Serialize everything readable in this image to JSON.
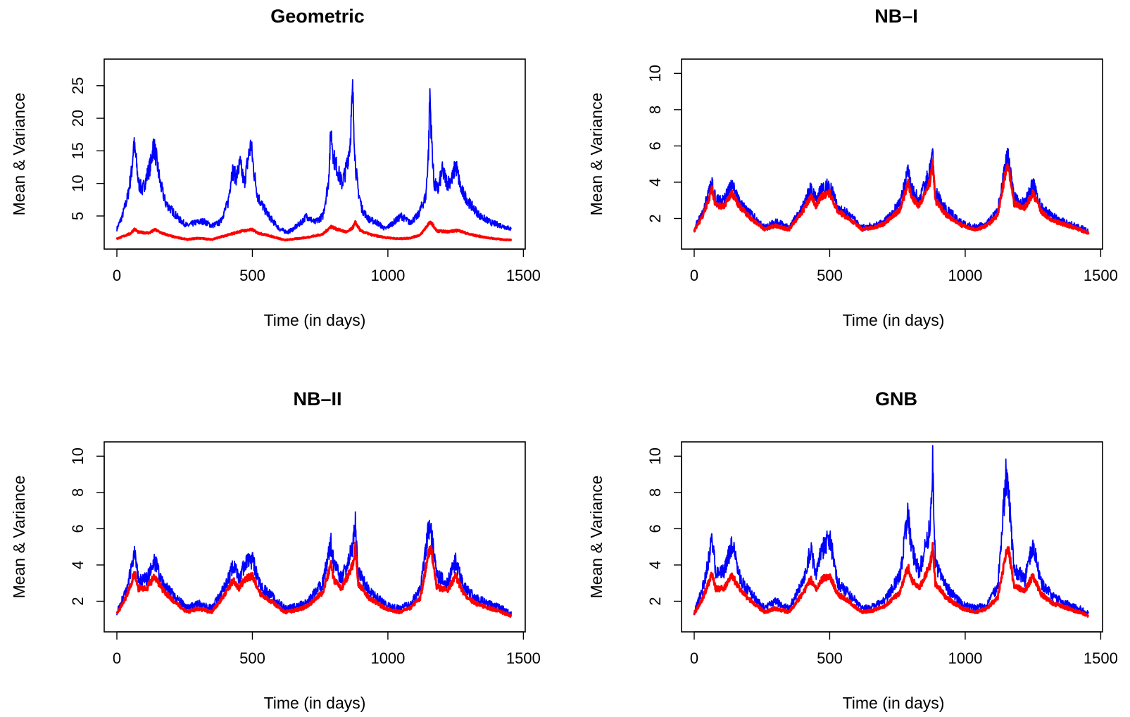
{
  "chart_data": [
    {
      "type": "line",
      "title": "Geometric",
      "xlabel": "Time (in days)",
      "ylabel": "Mean & Variance",
      "xlim": [
        0,
        1460
      ],
      "ylim": [
        1,
        28
      ],
      "xticks": [
        0,
        500,
        1000,
        1500
      ],
      "yticks": [
        5,
        10,
        15,
        20,
        25
      ],
      "grid": false,
      "colors": {
        "variance": "#0000ff",
        "mean": "#ff0000"
      },
      "series": [
        {
          "x": [
            0,
            20,
            40,
            55,
            62,
            70,
            80,
            95,
            110,
            125,
            135,
            145,
            160,
            180,
            200,
            230,
            260,
            290,
            320,
            350,
            380,
            410,
            425,
            440,
            455,
            470,
            485,
            495,
            505,
            520,
            545,
            570,
            600,
            630,
            650,
            680,
            700,
            730,
            760,
            780,
            790,
            800,
            815,
            830,
            845,
            860,
            870,
            880,
            890,
            905,
            930,
            960,
            990,
            1020,
            1050,
            1080,
            1110,
            1140,
            1150,
            1155,
            1160,
            1170,
            1185,
            1200,
            1220,
            1240,
            1250,
            1270,
            1300,
            1340,
            1380,
            1420,
            1455
          ],
          "values": [
            3,
            5,
            8,
            12,
            16,
            14,
            10,
            9,
            11,
            13,
            16,
            14,
            10,
            7,
            6,
            4.5,
            3.5,
            4,
            4.2,
            3.5,
            4,
            7,
            12,
            11,
            13,
            10,
            14,
            16,
            12,
            8,
            6,
            4.5,
            3,
            2.5,
            3,
            4,
            5,
            4,
            5,
            10,
            18,
            14,
            12,
            10,
            12,
            16,
            24,
            13,
            9,
            6,
            4.5,
            4,
            3,
            4,
            5,
            4,
            5,
            8,
            15,
            24,
            18,
            10,
            9,
            12,
            10,
            11,
            13,
            9,
            7,
            5,
            4,
            3.5,
            3
          ]
        },
        {
          "x": [
            0,
            50,
            65,
            80,
            120,
            140,
            170,
            210,
            260,
            300,
            350,
            420,
            460,
            500,
            520,
            560,
            620,
            660,
            700,
            760,
            790,
            810,
            850,
            870,
            880,
            900,
            940,
            990,
            1040,
            1080,
            1120,
            1150,
            1160,
            1180,
            1220,
            1260,
            1300,
            1360,
            1420,
            1455
          ],
          "values": [
            1.5,
            2.3,
            3,
            2.5,
            2.4,
            2.9,
            2.3,
            1.8,
            1.4,
            1.6,
            1.4,
            2.2,
            2.7,
            2.9,
            2.4,
            2,
            1.3,
            1.5,
            1.7,
            2.2,
            3.4,
            3,
            2.5,
            3.2,
            4,
            2.7,
            2.1,
            1.7,
            1.5,
            1.6,
            2.1,
            3.8,
            4,
            2.7,
            2.6,
            2.8,
            2.2,
            1.7,
            1.4,
            1.3
          ]
        }
      ]
    },
    {
      "type": "line",
      "title": "NB–I",
      "xlabel": "Time (in days)",
      "ylabel": "Mean & Variance",
      "xlim": [
        0,
        1460
      ],
      "ylim": [
        0.7,
        10.4
      ],
      "xticks": [
        0,
        500,
        1000,
        1500
      ],
      "yticks": [
        2,
        4,
        6,
        8,
        10
      ],
      "grid": false,
      "colors": {
        "variance": "#0000ff",
        "mean": "#ff0000"
      },
      "series": [
        {
          "x": [
            0,
            30,
            55,
            65,
            80,
            110,
            140,
            170,
            210,
            260,
            300,
            350,
            400,
            430,
            450,
            470,
            500,
            530,
            570,
            620,
            660,
            700,
            760,
            790,
            800,
            830,
            870,
            880,
            890,
            930,
            990,
            1040,
            1080,
            1120,
            1150,
            1160,
            1180,
            1220,
            1250,
            1280,
            1320,
            1380,
            1420,
            1455
          ],
          "values": [
            1.4,
            2.3,
            3.4,
            4.1,
            3,
            3,
            3.8,
            2.8,
            2.2,
            1.5,
            1.8,
            1.5,
            2.6,
            3.6,
            3,
            3.6,
            3.8,
            2.6,
            2.2,
            1.5,
            1.6,
            1.8,
            2.8,
            4.6,
            3.6,
            3,
            4.6,
            5.5,
            3.4,
            2.5,
            1.7,
            1.5,
            1.7,
            2.4,
            5.2,
            5.3,
            3.1,
            2.8,
            3.9,
            2.6,
            2.1,
            1.7,
            1.5,
            1.3
          ]
        },
        {
          "x": [
            0,
            30,
            55,
            65,
            80,
            110,
            140,
            170,
            210,
            260,
            300,
            350,
            400,
            430,
            450,
            470,
            500,
            530,
            570,
            620,
            660,
            700,
            760,
            790,
            800,
            830,
            870,
            880,
            890,
            930,
            990,
            1040,
            1080,
            1120,
            1150,
            1160,
            1180,
            1220,
            1250,
            1280,
            1320,
            1380,
            1420,
            1455
          ],
          "values": [
            1.3,
            2.1,
            3.1,
            3.6,
            2.7,
            2.7,
            3.4,
            2.6,
            2,
            1.4,
            1.6,
            1.4,
            2.4,
            3.2,
            2.7,
            3.2,
            3.4,
            2.4,
            2,
            1.4,
            1.5,
            1.7,
            2.5,
            4,
            3.2,
            2.7,
            4,
            5,
            3,
            2.2,
            1.6,
            1.4,
            1.6,
            2.2,
            4.6,
            4.9,
            2.8,
            2.6,
            3.4,
            2.4,
            1.9,
            1.6,
            1.4,
            1.2
          ]
        }
      ]
    },
    {
      "type": "line",
      "title": "NB–II",
      "xlabel": "Time (in days)",
      "ylabel": "Mean & Variance",
      "xlim": [
        0,
        1460
      ],
      "ylim": [
        0.7,
        10.4
      ],
      "xticks": [
        0,
        500,
        1000,
        1500
      ],
      "yticks": [
        2,
        4,
        6,
        8,
        10
      ],
      "grid": false,
      "colors": {
        "variance": "#0000ff",
        "mean": "#ff0000"
      },
      "series": [
        {
          "x": [
            0,
            30,
            55,
            65,
            80,
            110,
            140,
            170,
            210,
            260,
            300,
            350,
            400,
            430,
            450,
            470,
            500,
            530,
            570,
            620,
            660,
            700,
            760,
            790,
            800,
            830,
            870,
            880,
            890,
            930,
            990,
            1040,
            1080,
            1120,
            1150,
            1160,
            1180,
            1220,
            1250,
            1280,
            1320,
            1380,
            1420,
            1455
          ],
          "values": [
            1.4,
            2.4,
            3.8,
            4.6,
            3.2,
            3.2,
            4.2,
            3,
            2.3,
            1.6,
            1.9,
            1.6,
            2.8,
            4,
            3.2,
            4,
            4.3,
            2.8,
            2.3,
            1.6,
            1.7,
            1.9,
            3,
            5.2,
            4,
            3.2,
            5,
            6.4,
            3.6,
            2.6,
            1.8,
            1.6,
            1.8,
            2.6,
            6,
            5.8,
            3.4,
            3,
            4.2,
            2.8,
            2.2,
            1.8,
            1.6,
            1.3
          ]
        },
        {
          "x": [
            0,
            30,
            55,
            65,
            80,
            110,
            140,
            170,
            210,
            260,
            300,
            350,
            400,
            430,
            450,
            470,
            500,
            530,
            570,
            620,
            660,
            700,
            760,
            790,
            800,
            830,
            870,
            880,
            890,
            930,
            990,
            1040,
            1080,
            1120,
            1150,
            1160,
            1180,
            1220,
            1250,
            1280,
            1320,
            1380,
            1420,
            1455
          ],
          "values": [
            1.3,
            2.1,
            3.1,
            3.6,
            2.7,
            2.7,
            3.4,
            2.6,
            2,
            1.4,
            1.6,
            1.4,
            2.4,
            3.2,
            2.7,
            3.2,
            3.4,
            2.4,
            2,
            1.4,
            1.5,
            1.7,
            2.5,
            4,
            3.2,
            2.7,
            4,
            5,
            3,
            2.2,
            1.6,
            1.4,
            1.6,
            2.2,
            4.6,
            4.9,
            2.8,
            2.6,
            3.4,
            2.4,
            1.9,
            1.6,
            1.4,
            1.2
          ]
        }
      ]
    },
    {
      "type": "line",
      "title": "GNB",
      "xlabel": "Time (in days)",
      "ylabel": "Mean & Variance",
      "xlim": [
        0,
        1460
      ],
      "ylim": [
        0.7,
        10.4
      ],
      "xticks": [
        0,
        500,
        1000,
        1500
      ],
      "yticks": [
        2,
        4,
        6,
        8,
        10
      ],
      "grid": false,
      "colors": {
        "variance": "#0000ff",
        "mean": "#ff0000"
      },
      "series": [
        {
          "x": [
            0,
            30,
            55,
            65,
            80,
            110,
            140,
            170,
            210,
            260,
            300,
            350,
            400,
            430,
            450,
            470,
            500,
            530,
            570,
            620,
            660,
            700,
            760,
            790,
            800,
            830,
            870,
            880,
            890,
            930,
            990,
            1040,
            1080,
            1120,
            1150,
            1160,
            1180,
            1220,
            1250,
            1280,
            1320,
            1380,
            1420,
            1455
          ],
          "values": [
            1.4,
            2.6,
            4.4,
            5.6,
            3.6,
            3.6,
            5.2,
            3.2,
            2.4,
            1.6,
            2,
            1.6,
            3,
            4.8,
            3.6,
            4.8,
            5.5,
            3,
            2.4,
            1.6,
            1.7,
            2,
            3.4,
            7,
            5,
            3.6,
            6,
            9.6,
            4,
            2.8,
            1.8,
            1.6,
            1.8,
            2.8,
            8.8,
            8,
            3.8,
            3.2,
            5.2,
            3,
            2.3,
            1.8,
            1.6,
            1.3
          ]
        },
        {
          "x": [
            0,
            30,
            55,
            65,
            80,
            110,
            140,
            170,
            210,
            260,
            300,
            350,
            400,
            430,
            450,
            470,
            500,
            530,
            570,
            620,
            660,
            700,
            760,
            790,
            800,
            830,
            870,
            880,
            890,
            930,
            990,
            1040,
            1080,
            1120,
            1150,
            1160,
            1180,
            1220,
            1250,
            1280,
            1320,
            1380,
            1420,
            1455
          ],
          "values": [
            1.3,
            2.1,
            3.1,
            3.6,
            2.7,
            2.7,
            3.4,
            2.6,
            2,
            1.4,
            1.6,
            1.4,
            2.4,
            3.2,
            2.7,
            3.2,
            3.4,
            2.4,
            2,
            1.4,
            1.5,
            1.7,
            2.5,
            4,
            3.2,
            2.7,
            4,
            5,
            3,
            2.2,
            1.6,
            1.4,
            1.6,
            2.2,
            4.6,
            4.9,
            2.8,
            2.6,
            3.4,
            2.4,
            1.9,
            1.6,
            1.4,
            1.2
          ]
        }
      ]
    }
  ]
}
